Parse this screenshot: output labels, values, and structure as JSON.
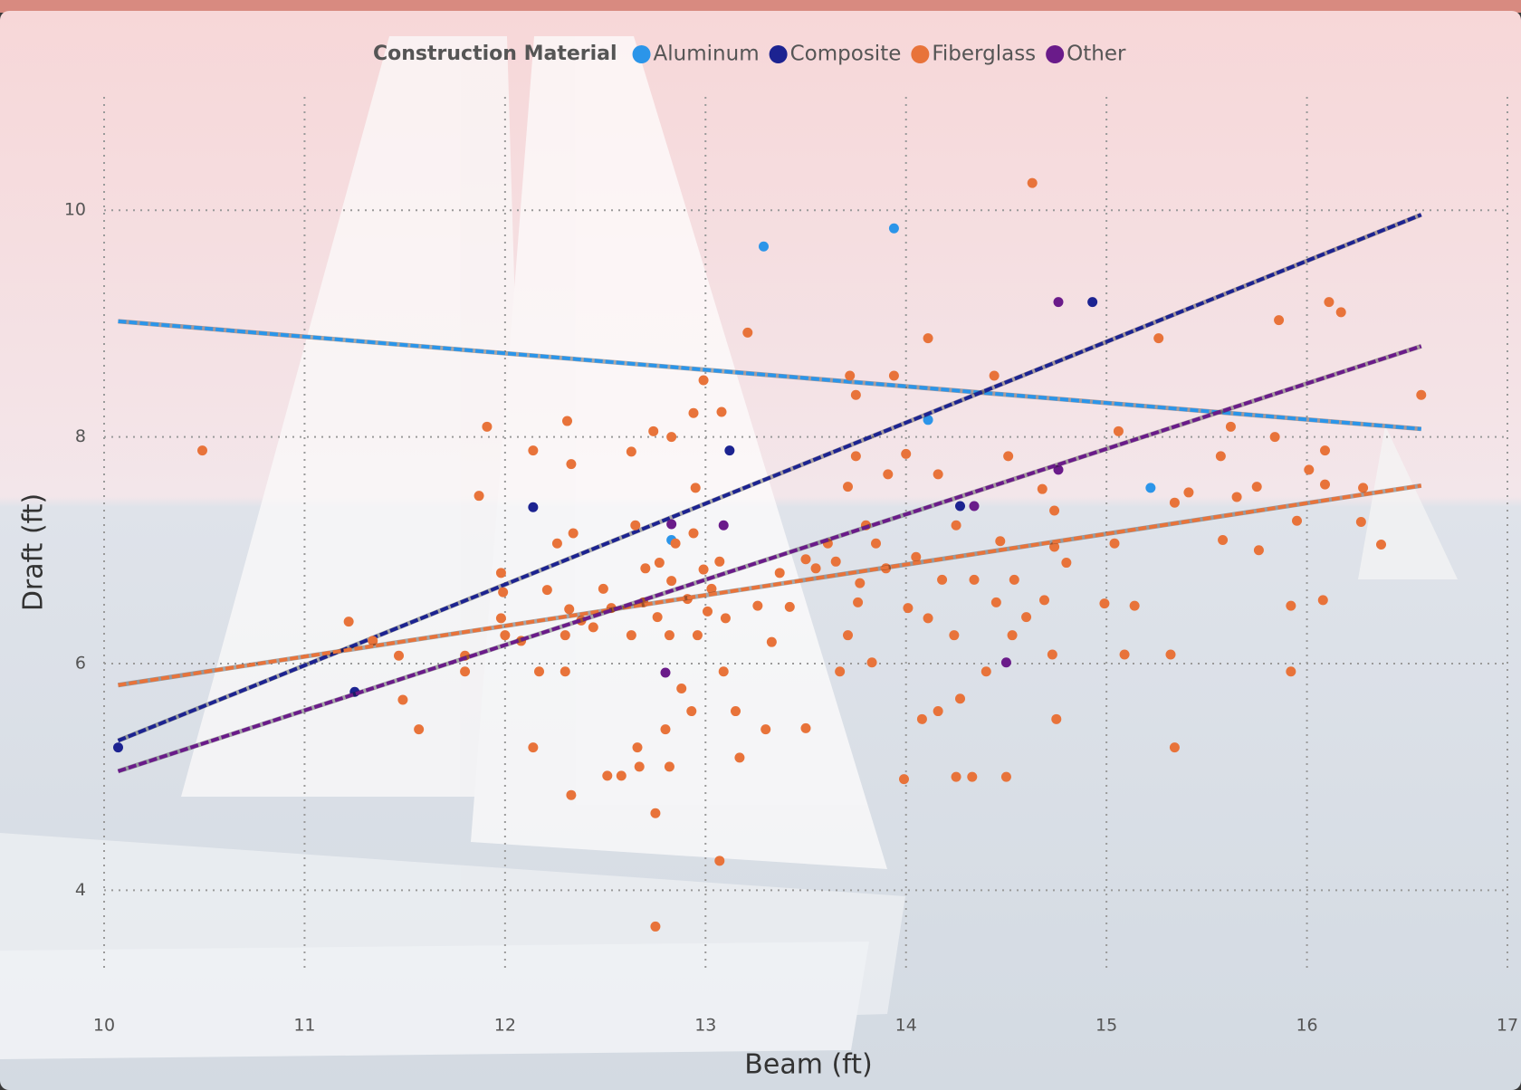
{
  "chart_data": {
    "type": "scatter",
    "legend_title": "Construction Material",
    "x_label": "Beam (ft)",
    "y_label": "Draft (ft)",
    "xlim": [
      10,
      17
    ],
    "ylim": [
      3.3,
      11
    ],
    "xticks": [
      10,
      11,
      12,
      13,
      14,
      15,
      16,
      17
    ],
    "yticks": [
      4,
      6,
      8,
      10
    ],
    "grid": true,
    "legend_position": "top",
    "series": [
      {
        "name": "Aluminum",
        "color": "#2b95e9",
        "x": [
          13.29,
          13.94,
          14.11,
          12.83,
          15.22
        ],
        "y": [
          9.68,
          9.84,
          8.15,
          7.09,
          7.55
        ],
        "trendline": {
          "x": [
            10.07,
            16.57
          ],
          "y": [
            9.02,
            8.07
          ]
        }
      },
      {
        "name": "Composite",
        "color": "#1c2391",
        "x": [
          10.07,
          12.14,
          13.12,
          14.93,
          14.27,
          11.25
        ],
        "y": [
          5.26,
          7.38,
          7.88,
          9.19,
          7.39,
          5.75
        ],
        "trendline": {
          "x": [
            10.07,
            16.57
          ],
          "y": [
            5.32,
            9.96
          ]
        }
      },
      {
        "name": "Fiberglass",
        "color": "#e8733a",
        "x": [
          10.49,
          11.22,
          11.34,
          11.49,
          11.57,
          11.47,
          11.8,
          11.8,
          11.87,
          11.91,
          11.98,
          11.99,
          11.98,
          12.0,
          12.08,
          12.14,
          12.14,
          12.17,
          12.21,
          12.26,
          12.31,
          12.33,
          12.34,
          12.3,
          12.33,
          12.32,
          12.3,
          12.38,
          12.44,
          12.49,
          12.51,
          12.53,
          12.58,
          12.63,
          12.65,
          12.66,
          12.67,
          12.63,
          12.69,
          12.7,
          12.74,
          12.75,
          12.75,
          12.76,
          12.77,
          12.8,
          12.83,
          12.82,
          12.82,
          12.83,
          12.85,
          12.88,
          12.91,
          12.93,
          12.94,
          12.95,
          12.94,
          12.96,
          12.99,
          12.99,
          13.01,
          13.03,
          13.07,
          13.08,
          13.07,
          13.09,
          13.1,
          13.15,
          13.17,
          13.21,
          13.26,
          13.3,
          13.33,
          13.37,
          13.42,
          13.5,
          13.5,
          13.55,
          13.61,
          13.65,
          13.67,
          13.71,
          13.71,
          13.72,
          13.75,
          13.75,
          13.76,
          13.77,
          13.8,
          13.83,
          13.85,
          13.9,
          13.91,
          13.94,
          13.99,
          14.0,
          14.01,
          14.05,
          14.08,
          14.11,
          14.11,
          14.16,
          14.16,
          14.18,
          14.24,
          14.25,
          14.27,
          14.25,
          14.33,
          14.34,
          14.4,
          14.44,
          14.45,
          14.47,
          14.5,
          14.51,
          14.53,
          14.54,
          14.6,
          14.63,
          14.69,
          14.68,
          14.73,
          14.74,
          14.74,
          14.75,
          14.8,
          14.99,
          15.04,
          15.06,
          15.09,
          15.14,
          15.26,
          15.32,
          15.34,
          15.34,
          15.41,
          15.57,
          15.58,
          15.62,
          15.65,
          15.75,
          15.76,
          15.84,
          15.86,
          15.92,
          15.92,
          15.95,
          16.01,
          16.08,
          16.09,
          16.09,
          16.11,
          16.17,
          16.27,
          16.28,
          16.37,
          16.57
        ],
        "y": [
          7.88,
          6.37,
          6.2,
          5.68,
          5.42,
          6.07,
          5.93,
          6.07,
          7.48,
          8.09,
          6.8,
          6.63,
          6.4,
          6.25,
          6.2,
          7.88,
          5.26,
          5.93,
          6.65,
          7.06,
          8.14,
          7.76,
          7.15,
          5.93,
          4.84,
          6.48,
          6.25,
          6.38,
          6.32,
          6.66,
          5.01,
          6.49,
          5.01,
          7.87,
          7.22,
          5.26,
          5.09,
          6.25,
          6.54,
          6.84,
          8.05,
          4.68,
          3.68,
          6.41,
          6.89,
          5.42,
          8.0,
          5.09,
          6.25,
          6.73,
          7.06,
          5.78,
          6.57,
          5.58,
          8.21,
          7.55,
          7.15,
          6.25,
          8.5,
          6.83,
          6.46,
          6.66,
          6.9,
          8.22,
          4.26,
          5.93,
          6.4,
          5.58,
          5.17,
          8.92,
          6.51,
          5.42,
          6.19,
          6.8,
          6.5,
          5.43,
          6.92,
          6.84,
          7.06,
          6.9,
          5.93,
          7.56,
          6.25,
          8.54,
          8.37,
          7.83,
          6.54,
          6.71,
          7.22,
          6.01,
          7.06,
          6.84,
          7.67,
          8.54,
          4.98,
          7.85,
          6.49,
          6.94,
          5.51,
          8.87,
          6.4,
          5.58,
          7.67,
          6.74,
          6.25,
          7.22,
          5.69,
          5.0,
          5.0,
          6.74,
          5.93,
          8.54,
          6.54,
          7.08,
          5.0,
          7.83,
          6.25,
          6.74,
          6.41,
          10.24,
          6.56,
          7.54,
          6.08,
          7.35,
          7.03,
          5.51,
          6.89,
          6.53,
          7.06,
          8.05,
          6.08,
          6.51,
          8.87,
          6.08,
          5.26,
          7.42,
          7.51,
          7.83,
          7.09,
          8.09,
          7.47,
          7.56,
          7.0,
          8.0,
          9.03,
          6.51,
          5.93,
          7.26,
          7.71,
          6.56,
          7.58,
          7.88,
          9.19,
          9.1,
          7.25,
          7.55,
          7.05,
          8.37
        ],
        "trendline": {
          "x": [
            10.07,
            16.57
          ],
          "y": [
            5.81,
            7.57
          ]
        }
      },
      {
        "name": "Other",
        "color": "#6a1b8a",
        "x": [
          14.76,
          14.76,
          12.83,
          13.09,
          12.8,
          14.5,
          14.34
        ],
        "y": [
          9.19,
          7.71,
          7.23,
          7.22,
          5.92,
          6.01,
          7.39
        ],
        "trendline": {
          "x": [
            10.07,
            16.57
          ],
          "y": [
            5.05,
            8.8
          ]
        }
      }
    ]
  }
}
